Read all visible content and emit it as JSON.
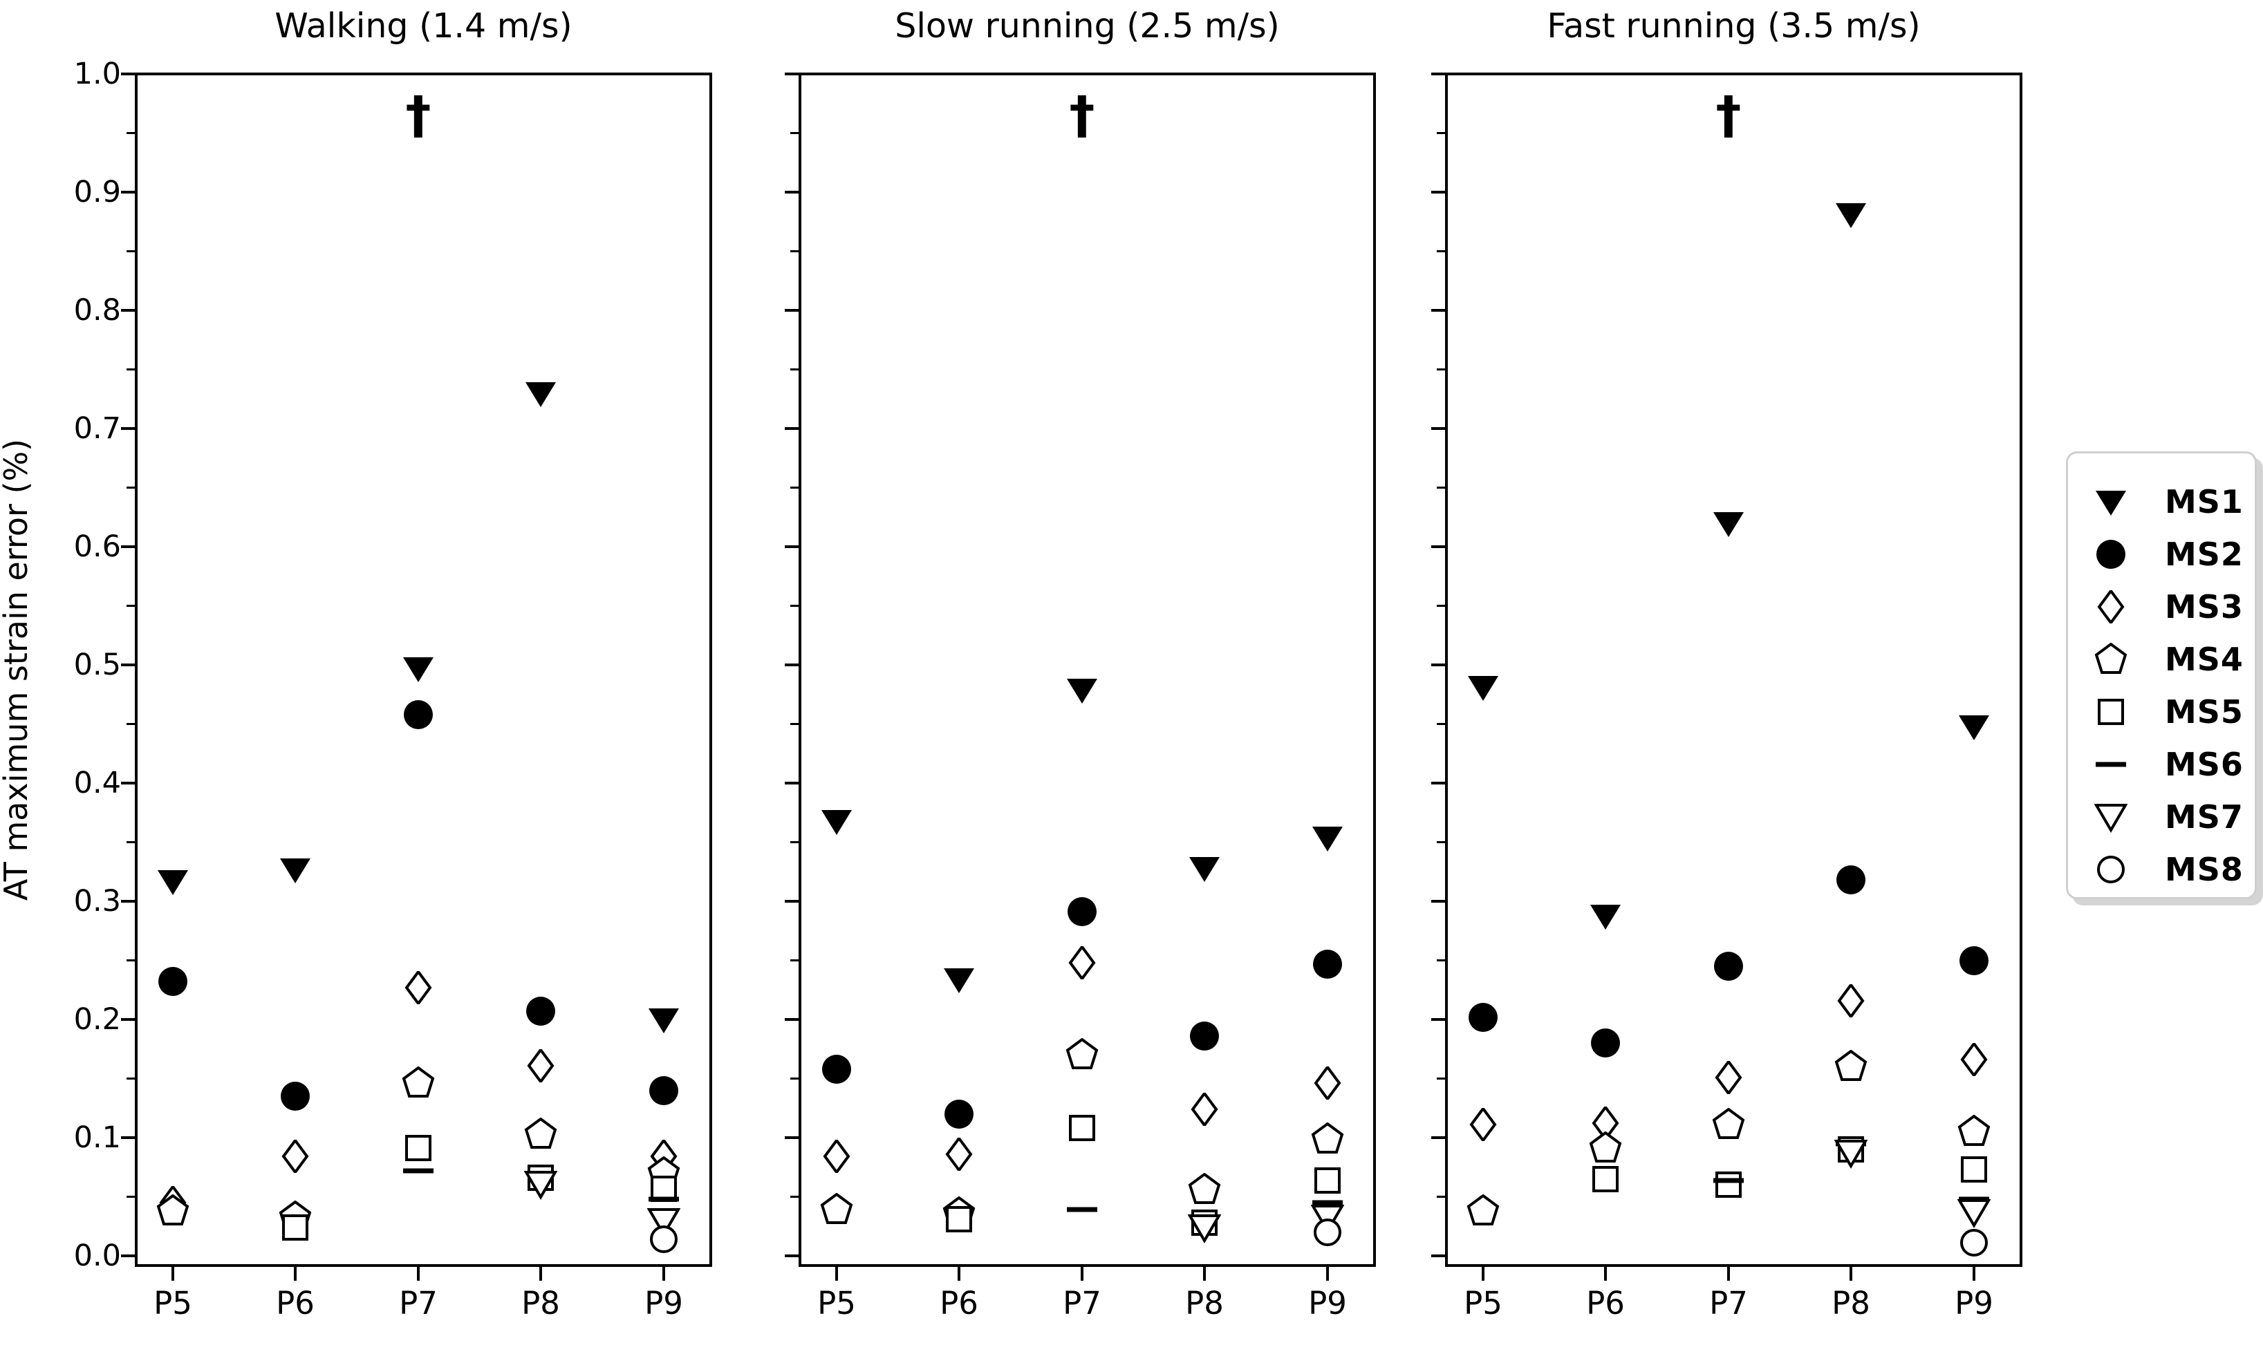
{
  "figure": {
    "ylabel": "AT maximum strain error (%)",
    "annotation_symbol": "†",
    "x_tick_labels": [
      "P5",
      "P6",
      "P7",
      "P8",
      "P9"
    ],
    "y_tick_labels": [
      "0.0",
      "0.1",
      "0.2",
      "0.3",
      "0.4",
      "0.5",
      "0.6",
      "0.7",
      "0.8",
      "0.9",
      "1.0"
    ],
    "colors": {
      "foreground": "#000000",
      "background": "#ffffff",
      "legend_border": "#cfcfcf",
      "legend_shadow": "#d4d4d4"
    }
  },
  "legend": {
    "entries": [
      {
        "label": "MS1",
        "marker": "triangle-down-filled"
      },
      {
        "label": "MS2",
        "marker": "circle-filled"
      },
      {
        "label": "MS3",
        "marker": "diamond-open"
      },
      {
        "label": "MS4",
        "marker": "pentagon-open"
      },
      {
        "label": "MS5",
        "marker": "square-open"
      },
      {
        "label": "MS6",
        "marker": "dash"
      },
      {
        "label": "MS7",
        "marker": "triangle-down-open"
      },
      {
        "label": "MS8",
        "marker": "circle-open"
      }
    ]
  },
  "chart_data": [
    {
      "type": "scatter",
      "title": "Walking (1.4 m/s)",
      "categories": [
        "P5",
        "P6",
        "P7",
        "P8",
        "P9"
      ],
      "xlabel": "",
      "ylabel": "AT maximum strain error (%)",
      "ylim": [
        0.0,
        1.0
      ],
      "y_major_tick_step": 0.1,
      "y_minor_tick_step": 0.05,
      "grid": false,
      "legend_position": "outside-right",
      "annotation": {
        "text": "†",
        "x": "P7",
        "y": 0.965
      },
      "series": [
        {
          "name": "MS1",
          "marker": "triangle-down-filled",
          "values": [
            0.317,
            0.327,
            0.497,
            0.73,
            0.2
          ]
        },
        {
          "name": "MS2",
          "marker": "circle-filled",
          "values": [
            0.232,
            0.135,
            0.458,
            0.207,
            0.14
          ]
        },
        {
          "name": "MS3",
          "marker": "diamond-open",
          "values": [
            0.045,
            0.084,
            0.227,
            0.161,
            0.084
          ]
        },
        {
          "name": "MS4",
          "marker": "pentagon-open",
          "values": [
            0.038,
            0.033,
            0.146,
            0.103,
            0.07
          ]
        },
        {
          "name": "MS5",
          "marker": "square-open",
          "values": [
            null,
            0.024,
            0.091,
            0.066,
            0.057
          ]
        },
        {
          "name": "MS6",
          "marker": "dash",
          "values": [
            null,
            null,
            0.072,
            null,
            0.048
          ]
        },
        {
          "name": "MS7",
          "marker": "triangle-down-open",
          "values": [
            null,
            null,
            null,
            0.061,
            0.029
          ]
        },
        {
          "name": "MS8",
          "marker": "circle-open",
          "values": [
            null,
            null,
            null,
            null,
            0.014
          ]
        }
      ]
    },
    {
      "type": "scatter",
      "title": "Slow running (2.5 m/s)",
      "categories": [
        "P5",
        "P6",
        "P7",
        "P8",
        "P9"
      ],
      "xlabel": "",
      "ylabel": "",
      "ylim": [
        0.0,
        1.0
      ],
      "y_major_tick_step": 0.1,
      "y_minor_tick_step": 0.05,
      "grid": false,
      "annotation": {
        "text": "†",
        "x": "P7",
        "y": 0.965
      },
      "series": [
        {
          "name": "MS1",
          "marker": "triangle-down-filled",
          "values": [
            0.368,
            0.234,
            0.479,
            0.328,
            0.354
          ]
        },
        {
          "name": "MS2",
          "marker": "circle-filled",
          "values": [
            0.158,
            0.12,
            0.291,
            0.186,
            0.247
          ]
        },
        {
          "name": "MS3",
          "marker": "diamond-open",
          "values": [
            0.084,
            0.086,
            0.248,
            0.124,
            0.146
          ]
        },
        {
          "name": "MS4",
          "marker": "pentagon-open",
          "values": [
            0.039,
            0.036,
            0.17,
            0.056,
            0.099
          ]
        },
        {
          "name": "MS5",
          "marker": "square-open",
          "values": [
            null,
            0.031,
            0.108,
            0.028,
            0.064
          ]
        },
        {
          "name": "MS6",
          "marker": "dash",
          "values": [
            null,
            null,
            0.039,
            null,
            0.045
          ]
        },
        {
          "name": "MS7",
          "marker": "triangle-down-open",
          "values": [
            null,
            null,
            null,
            0.024,
            0.032
          ]
        },
        {
          "name": "MS8",
          "marker": "circle-open",
          "values": [
            null,
            null,
            null,
            null,
            0.02
          ]
        }
      ]
    },
    {
      "type": "scatter",
      "title": "Fast running (3.5 m/s)",
      "categories": [
        "P5",
        "P6",
        "P7",
        "P8",
        "P9"
      ],
      "xlabel": "",
      "ylabel": "",
      "ylim": [
        0.0,
        1.0
      ],
      "y_major_tick_step": 0.1,
      "y_minor_tick_step": 0.05,
      "grid": false,
      "annotation": {
        "text": "†",
        "x": "P7",
        "y": 0.965
      },
      "series": [
        {
          "name": "MS1",
          "marker": "triangle-down-filled",
          "values": [
            0.481,
            0.288,
            0.62,
            0.881,
            0.448
          ]
        },
        {
          "name": "MS2",
          "marker": "circle-filled",
          "values": [
            0.202,
            0.18,
            0.245,
            0.318,
            0.25
          ]
        },
        {
          "name": "MS3",
          "marker": "diamond-open",
          "values": [
            0.111,
            0.112,
            0.151,
            0.216,
            0.166
          ]
        },
        {
          "name": "MS4",
          "marker": "pentagon-open",
          "values": [
            0.038,
            0.091,
            0.111,
            0.16,
            0.105
          ]
        },
        {
          "name": "MS5",
          "marker": "square-open",
          "values": [
            null,
            0.065,
            0.06,
            0.09,
            0.073
          ]
        },
        {
          "name": "MS6",
          "marker": "dash",
          "values": [
            null,
            null,
            0.064,
            0.095,
            0.048
          ]
        },
        {
          "name": "MS7",
          "marker": "triangle-down-open",
          "values": [
            null,
            null,
            null,
            0.087,
            0.037
          ]
        },
        {
          "name": "MS8",
          "marker": "circle-open",
          "values": [
            null,
            null,
            null,
            null,
            0.011
          ]
        }
      ]
    }
  ]
}
